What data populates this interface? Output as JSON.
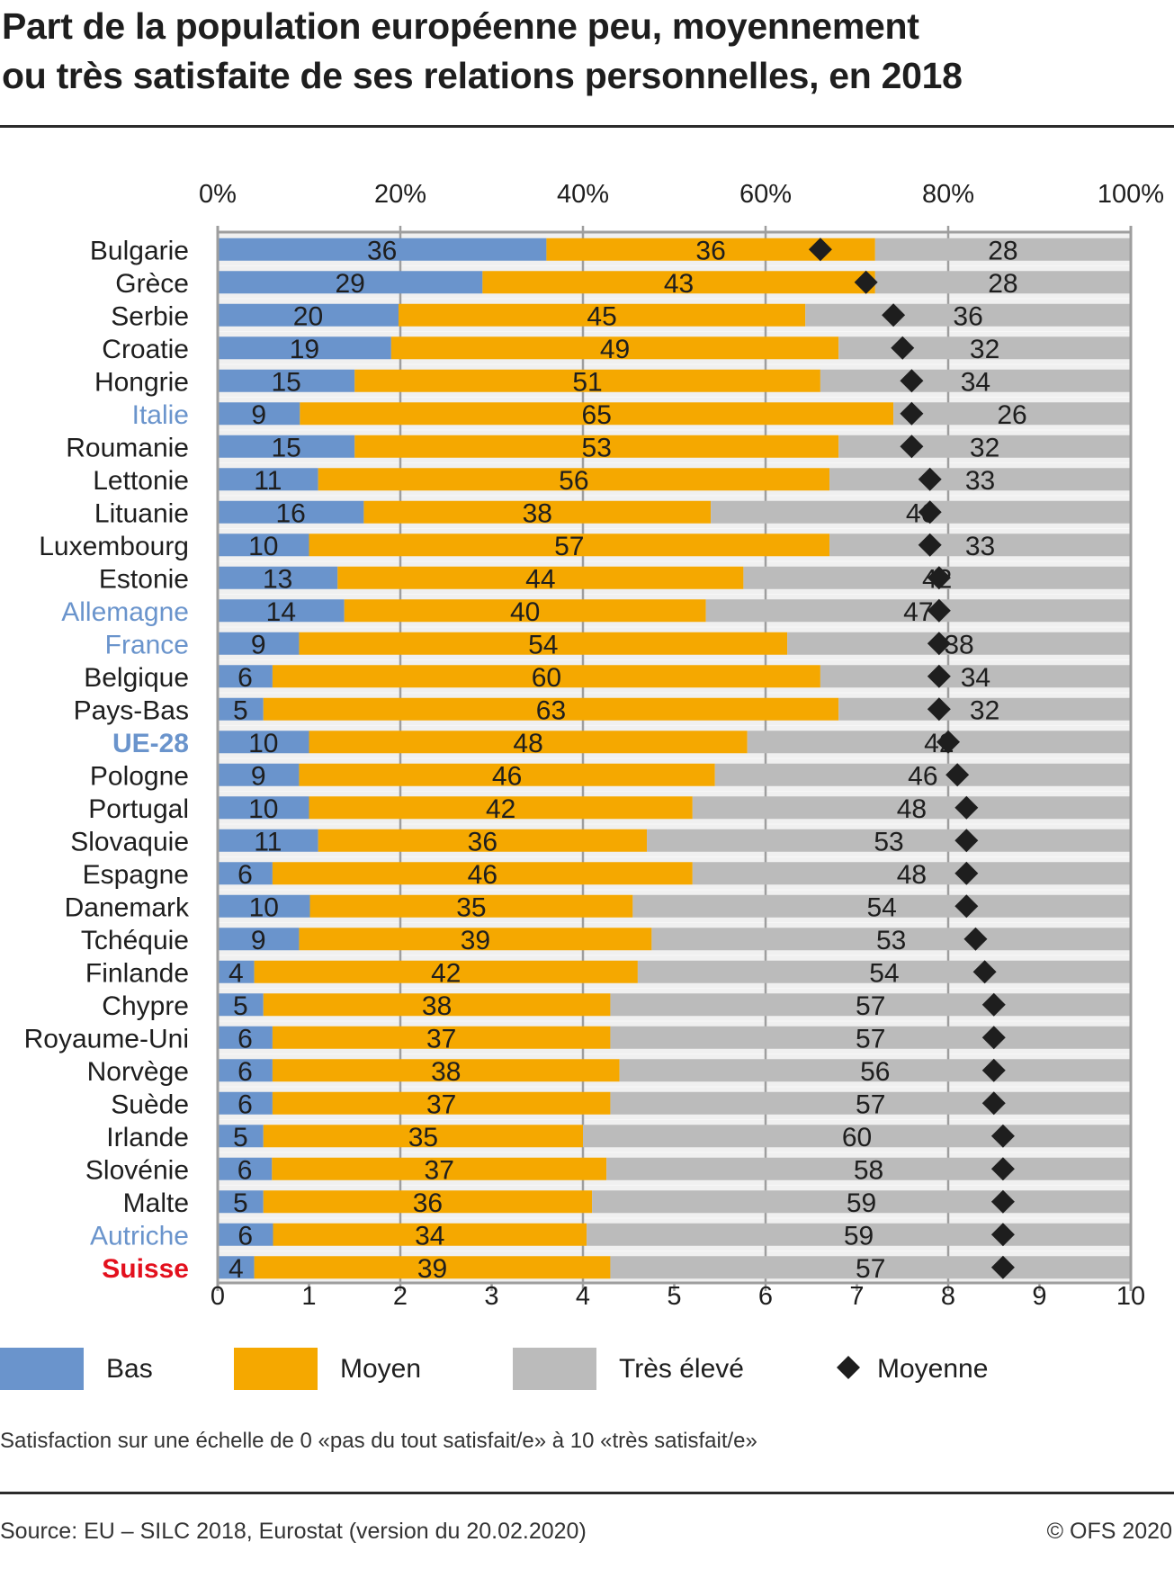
{
  "title": {
    "line1": "Part de la population européenne peu, moyennement",
    "line2": "ou très satisfaite de ses relations personnelles, en 2018"
  },
  "colors": {
    "bas": "#6a94cc",
    "moyen": "#f5a800",
    "tres_eleve": "#bbbbbb",
    "moyenne": "#1e1e1e",
    "highlight_blue": "#6a94cc",
    "highlight_red": "#e3101d",
    "stripe": "#f0f0f0",
    "grid": "#9e9e9e",
    "text": "#1e1e1e"
  },
  "chart_data": {
    "type": "bar",
    "orientation": "horizontal-stacked-100",
    "title": "Part de la population européenne peu, moyennement ou très satisfaite de ses relations personnelles, en 2018",
    "top_axis": {
      "label": "",
      "range": [
        0,
        100
      ],
      "ticks": [
        "0%",
        "20%",
        "40%",
        "60%",
        "80%",
        "100%"
      ]
    },
    "bottom_axis": {
      "label": "",
      "range": [
        0,
        10
      ],
      "ticks": [
        "0",
        "1",
        "2",
        "3",
        "4",
        "5",
        "6",
        "7",
        "8",
        "9",
        "10"
      ]
    },
    "grid": true,
    "legend_position": "bottom-left",
    "legend": [
      {
        "key": "bas",
        "label": "Bas",
        "marker": "square"
      },
      {
        "key": "moyen",
        "label": "Moyen",
        "marker": "square"
      },
      {
        "key": "tres_eleve",
        "label": "Très élevé",
        "marker": "square"
      },
      {
        "key": "moyenne",
        "label": "Moyenne",
        "marker": "diamond"
      }
    ],
    "categories": [
      "Bulgarie",
      "Grèce",
      "Serbie",
      "Croatie",
      "Hongrie",
      "Italie",
      "Roumanie",
      "Lettonie",
      "Lituanie",
      "Luxembourg",
      "Estonie",
      "Allemagne",
      "France",
      "Belgique",
      "Pays-Bas",
      "UE-28",
      "Pologne",
      "Portugal",
      "Slovaquie",
      "Espagne",
      "Danemark",
      "Tchéquie",
      "Finlande",
      "Chypre",
      "Royaume-Uni",
      "Norvège",
      "Suède",
      "Irlande",
      "Slovénie",
      "Malte",
      "Autriche",
      "Suisse"
    ],
    "category_style": {
      "Italie": "neighbor",
      "Allemagne": "neighbor",
      "France": "neighbor",
      "Autriche": "neighbor",
      "UE-28": "aggregate",
      "Suisse": "focus"
    },
    "series": [
      {
        "name": "Bas",
        "key": "bas",
        "unit": "%",
        "values": [
          36,
          29,
          20,
          19,
          15,
          9,
          15,
          11,
          16,
          10,
          13,
          14,
          9,
          6,
          5,
          10,
          9,
          10,
          11,
          6,
          10,
          9,
          4,
          5,
          6,
          6,
          6,
          5,
          6,
          5,
          6,
          4
        ]
      },
      {
        "name": "Moyen",
        "key": "moyen",
        "unit": "%",
        "values": [
          36,
          43,
          45,
          49,
          51,
          65,
          53,
          56,
          38,
          57,
          44,
          40,
          54,
          60,
          63,
          48,
          46,
          42,
          36,
          46,
          35,
          39,
          42,
          38,
          37,
          38,
          37,
          35,
          37,
          36,
          34,
          39
        ]
      },
      {
        "name": "Très élevé",
        "key": "tres_eleve",
        "unit": "%",
        "values": [
          28,
          28,
          36,
          32,
          34,
          26,
          32,
          33,
          46,
          33,
          42,
          47,
          38,
          34,
          32,
          42,
          46,
          48,
          53,
          48,
          54,
          53,
          54,
          57,
          57,
          56,
          57,
          60,
          58,
          59,
          59,
          57
        ]
      },
      {
        "name": "Moyenne",
        "key": "moyenne",
        "unit": "score 0-10",
        "marker": "diamond",
        "values": [
          6.6,
          7.1,
          7.4,
          7.5,
          7.6,
          7.6,
          7.6,
          7.8,
          7.8,
          7.8,
          7.9,
          7.9,
          7.9,
          7.9,
          7.9,
          8.0,
          8.1,
          8.2,
          8.2,
          8.2,
          8.2,
          8.3,
          8.4,
          8.5,
          8.5,
          8.5,
          8.5,
          8.6,
          8.6,
          8.6,
          8.6,
          8.6
        ]
      }
    ],
    "note": "Satisfaction sur une échelle de 0 «pas du tout satisfait/e» à 10 «très satisfait/e»"
  },
  "footer": {
    "note": "Satisfaction sur une échelle de 0 «pas du tout satisfait/e» à 10 «très satisfait/e»",
    "source": "Source: EU – SILC 2018, Eurostat (version du 20.02.2020)",
    "copyright": "© OFS 2020"
  }
}
